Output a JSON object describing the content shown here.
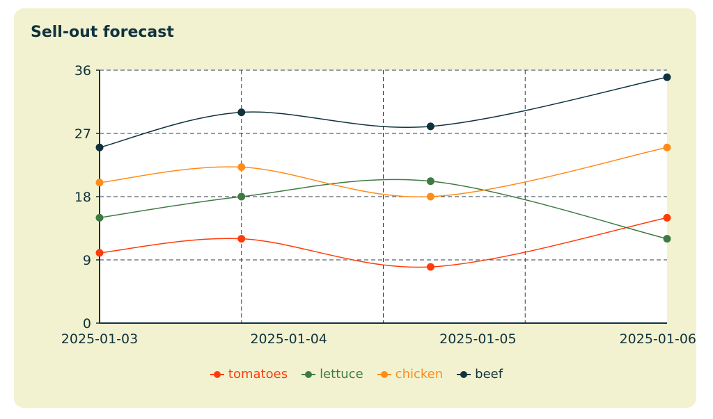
{
  "card": {
    "title": "Sell-out forecast"
  },
  "chart_data": {
    "type": "line",
    "title": "Sell-out forecast",
    "x": [
      "2025-01-03",
      "2025-01-04",
      "2025-01-05",
      "2025-01-06"
    ],
    "x_tick_labels": [
      "2025-01-03",
      "2025-01-04",
      "2025-01-05",
      "2025-01-06"
    ],
    "ylim": [
      0,
      36
    ],
    "y_ticks": [
      0,
      9,
      18,
      27,
      36
    ],
    "grid": "dashed",
    "legend": "bottom-center",
    "series": [
      {
        "name": "tomatoes",
        "color": "#ff3b0a",
        "points": [
          {
            "x": "2025-01-03",
            "y": 10
          },
          {
            "x": "2025-01-04",
            "y": 12
          },
          {
            "x": "2025-01-05",
            "y": 8
          },
          {
            "x": "2025-01-06",
            "y": 15
          }
        ]
      },
      {
        "name": "lettuce",
        "color": "#3f7a44",
        "points": [
          {
            "x": "2025-01-03",
            "y": 15
          },
          {
            "x": "2025-01-04",
            "y": 18
          },
          {
            "x": "2025-01-05",
            "y": 20.2
          },
          {
            "x": "2025-01-06",
            "y": 12
          }
        ]
      },
      {
        "name": "chicken",
        "color": "#ff8c1a",
        "points": [
          {
            "x": "2025-01-03",
            "y": 20
          },
          {
            "x": "2025-01-04",
            "y": 22.2
          },
          {
            "x": "2025-01-05",
            "y": 18
          },
          {
            "x": "2025-01-06",
            "y": 25
          }
        ]
      },
      {
        "name": "beef",
        "color": "#10323d",
        "points": [
          {
            "x": "2025-01-03",
            "y": 25
          },
          {
            "x": "2025-01-04",
            "y": 30
          },
          {
            "x": "2025-01-05",
            "y": 28
          },
          {
            "x": "2025-01-06",
            "y": 35
          }
        ]
      }
    ]
  }
}
